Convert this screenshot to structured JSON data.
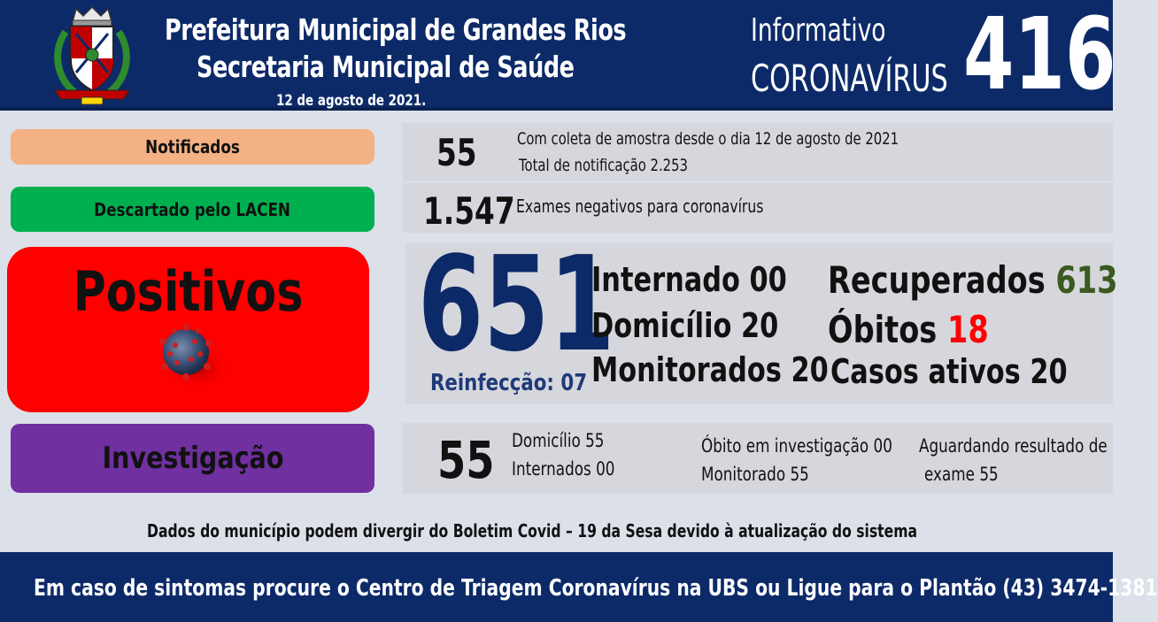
{
  "header": {
    "line1": "Prefeitura Municipal de Grandes Rios",
    "line2": "Secretaria Municipal de Saúde",
    "date": "12 de agosto de 2021.",
    "info_line1": "Informativo",
    "info_line2": "CORONAVÍRUS",
    "bulletin_number": "416"
  },
  "notificados": {
    "label": "Notificados",
    "value": "55",
    "line1": "Com coleta de amostra desde o dia 12 de agosto de 2021",
    "line2": "Total de notificação 2.253",
    "color": "#f4b183"
  },
  "descartado": {
    "label": "Descartado pelo LACEN",
    "value": "1.547",
    "line1": "Exames negativos para coronavírus",
    "color": "#00b050"
  },
  "positivos": {
    "label": "Positivos",
    "value": "651",
    "reinfeccao_label": "Reinfecção:",
    "reinfeccao_value": "07",
    "internado_label": "Internado",
    "internado_value": "00",
    "domicilio_label": "Domicílio",
    "domicilio_value": "20",
    "monitorados_label": "Monitorados",
    "monitorados_value": "20",
    "recuperados_label": "Recuperados",
    "recuperados_value": "613",
    "obitos_label": "Óbitos",
    "obitos_value": "18",
    "ativos_label": "Casos ativos",
    "ativos_value": "20",
    "color": "#ff0000"
  },
  "investigacao": {
    "label": "Investigação",
    "value": "55",
    "domicilio": "Domicílio 55",
    "internados": "Internados 00",
    "obito": "Óbito em investigação 00",
    "monitorado": "Monitorado 55",
    "aguardando1": "Aguardando resultado de",
    "aguardando2": "exame 55",
    "color": "#7030a0"
  },
  "disclaimer": "Dados do município podem divergir do Boletim Covid – 19 da Sesa devido à atualização do sistema",
  "footer": "Em caso de sintomas procure o Centro de Triagem Coronavírus na UBS ou Ligue para o Plantão (43) 3474-1381",
  "icons": {
    "crest": "municipal-coat-of-arms",
    "virus": "coronavirus-icon"
  },
  "colors": {
    "header_bg": "#0d2a68",
    "positivos_number": "#0d2a68",
    "recuperados_value": "#3a5a20",
    "obitos_value": "#ff0000"
  }
}
